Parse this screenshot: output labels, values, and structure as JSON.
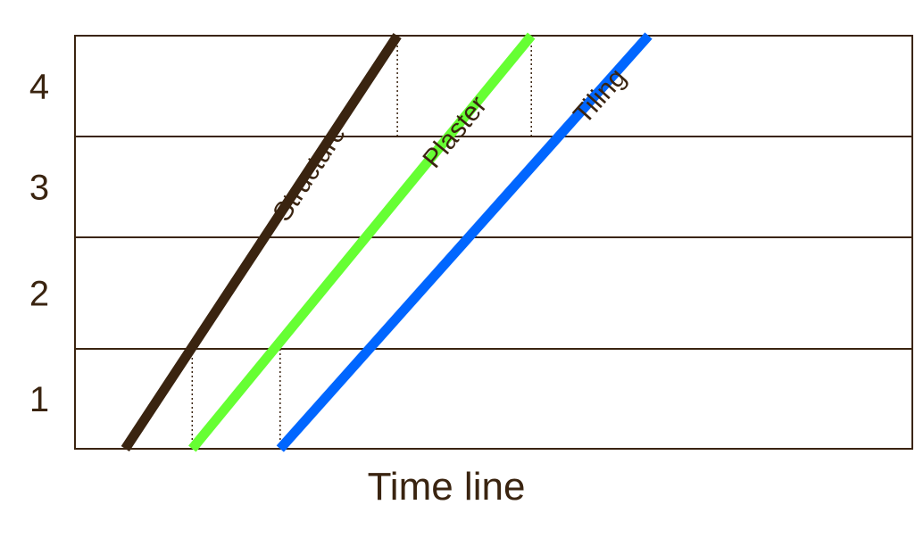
{
  "chart_data": {
    "type": "line",
    "title": "",
    "xlabel": "Time line",
    "ylabel": "",
    "x_range": [
      0,
      100
    ],
    "y_range": [
      0,
      4
    ],
    "y_tick_labels": [
      "1",
      "2",
      "3",
      "4"
    ],
    "grid": true,
    "legend": "none",
    "series": [
      {
        "name": "Structure",
        "color": "#3a2410",
        "x": [
          6,
          38.5
        ],
        "y": [
          0,
          4
        ]
      },
      {
        "name": "Plaster",
        "color": "#66ff33",
        "x": [
          14,
          54.5
        ],
        "y": [
          0,
          4
        ]
      },
      {
        "name": "Tiling",
        "color": "#0066ff",
        "x": [
          24.5,
          68.5
        ],
        "y": [
          0,
          4
        ]
      }
    ],
    "annotations": [
      {
        "type": "dotted-vline",
        "x": 14,
        "y": [
          0,
          1
        ]
      },
      {
        "type": "dotted-vline",
        "x": 24.5,
        "y": [
          0,
          1
        ]
      },
      {
        "type": "dotted-vline",
        "x": 38.5,
        "y": [
          3,
          4
        ]
      },
      {
        "type": "dotted-vline",
        "x": 54.5,
        "y": [
          3,
          4
        ]
      }
    ]
  }
}
